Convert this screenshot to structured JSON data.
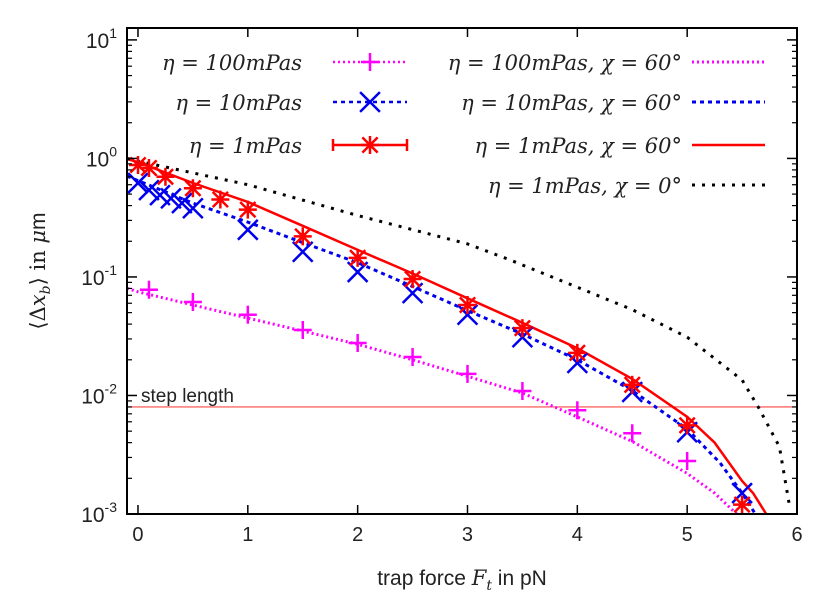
{
  "chart_data": {
    "type": "scatter",
    "xlabel": "trap force F_t in pN",
    "xlabel_parts": {
      "pre": "trap force ",
      "var": "F",
      "sub": "t",
      "post": " in pN"
    },
    "ylabel": "⟨Δx_b⟩ in μm",
    "ylabel_parts": {
      "pre": "⟨Δ",
      "var": "x",
      "sub": "b",
      "post": "⟩ in ",
      "unit_var": "μ",
      "unit": "m"
    },
    "xlim": [
      -0.1,
      6
    ],
    "ylim": [
      0.001,
      12.6
    ],
    "yscale": "log",
    "grid": false,
    "legend_position": "top",
    "x_ticks": [
      0,
      1,
      2,
      3,
      4,
      5,
      6
    ],
    "x_tick_labels": [
      "0",
      "1",
      "2",
      "3",
      "4",
      "5",
      "6"
    ],
    "y_ticks": [
      0.001,
      0.01,
      0.1,
      1,
      10
    ],
    "y_tick_labels": [
      {
        "base": "10",
        "exp": "-3"
      },
      {
        "base": "10",
        "exp": "-2"
      },
      {
        "base": "10",
        "exp": "-1"
      },
      {
        "base": "10",
        "exp": "0"
      },
      {
        "base": "10",
        "exp": "1"
      }
    ],
    "points": [
      {
        "name": "η = 100mPas",
        "marker": "plus",
        "color": "#ff00ff",
        "x": [
          0.1,
          0.5,
          1,
          1.5,
          2,
          2.5,
          3,
          3.5,
          4,
          4.5,
          5
        ],
        "y": [
          0.078,
          0.0615,
          0.048,
          0.0357,
          0.0277,
          0.0211,
          0.0152,
          0.0109,
          0.0075,
          0.0048,
          0.0028
        ]
      },
      {
        "name": "η = 10mPas",
        "marker": "cross",
        "color": "#0000ee",
        "x": [
          0,
          0.1,
          0.2,
          0.3,
          0.4,
          0.5,
          1,
          1.5,
          2,
          2.5,
          3,
          3.5,
          4,
          4.5,
          5,
          5.5
        ],
        "y": [
          0.62,
          0.54,
          0.49,
          0.46,
          0.42,
          0.38,
          0.25,
          0.163,
          0.11,
          0.073,
          0.048,
          0.031,
          0.0188,
          0.0107,
          0.0049,
          0.0015
        ]
      },
      {
        "name": "η = 1mPas",
        "marker": "star",
        "color": "#ff0000",
        "x": [
          0,
          0.1,
          0.25,
          0.5,
          0.75,
          1,
          1.5,
          2,
          2.5,
          3,
          3.5,
          4,
          4.5,
          5,
          5.5
        ],
        "y": [
          0.88,
          0.83,
          0.7,
          0.56,
          0.45,
          0.37,
          0.22,
          0.145,
          0.096,
          0.058,
          0.037,
          0.0229,
          0.0123,
          0.0056,
          0.0012
        ]
      }
    ],
    "curves": [
      {
        "name": "η = 100mPas, χ = 60°",
        "style": "dotted",
        "color": "#ff00ff",
        "x": [
          -0.1,
          0,
          0.5,
          1,
          1.5,
          2,
          2.5,
          3,
          3.5,
          4,
          4.5,
          5,
          5.25,
          5.45
        ],
        "y": [
          0.08,
          0.075,
          0.058,
          0.045,
          0.035,
          0.027,
          0.02,
          0.0145,
          0.0105,
          0.0066,
          0.0041,
          0.0022,
          0.0015,
          0.001
        ]
      },
      {
        "name": "η = 10mPas, χ = 60°",
        "style": "dashed",
        "color": "#0000ee",
        "x": [
          -0.1,
          0,
          0.5,
          1,
          1.5,
          2,
          2.5,
          3,
          3.5,
          4,
          4.5,
          5,
          5.3,
          5.5,
          5.62
        ],
        "y": [
          0.71,
          0.65,
          0.42,
          0.29,
          0.195,
          0.132,
          0.083,
          0.052,
          0.033,
          0.02,
          0.011,
          0.0052,
          0.0027,
          0.0015,
          0.001
        ]
      },
      {
        "name": "η = 1mPas, χ = 60°",
        "style": "solid",
        "color": "#ff0000",
        "x": [
          -0.1,
          0,
          0.5,
          1,
          1.5,
          2,
          2.5,
          3,
          3.5,
          4,
          4.5,
          5,
          5.25,
          5.5,
          5.6,
          5.72
        ],
        "y": [
          0.99,
          0.93,
          0.62,
          0.43,
          0.27,
          0.169,
          0.107,
          0.066,
          0.041,
          0.025,
          0.0138,
          0.0066,
          0.004,
          0.0019,
          0.0015,
          0.001
        ]
      },
      {
        "name": "η = 1mPas, χ = 0°",
        "style": "dotted-black",
        "color": "#000000",
        "x": [
          -0.1,
          0,
          1,
          2,
          3,
          3.38,
          4,
          4.5,
          5,
          5.5,
          5.65,
          5.84,
          5.93
        ],
        "y": [
          1.0,
          0.95,
          0.6,
          0.33,
          0.19,
          0.14,
          0.082,
          0.053,
          0.031,
          0.0135,
          0.0079,
          0.0037,
          0.0012
        ]
      }
    ],
    "hline": {
      "label": "step length",
      "y": 0.008,
      "color": "#ff4444"
    },
    "legend": [
      {
        "col": "left",
        "text": "η = 100mPas",
        "ref": "points.0",
        "line": "dotted"
      },
      {
        "col": "left",
        "text": "η = 10mPas",
        "ref": "points.1",
        "line": "dashed"
      },
      {
        "col": "left",
        "text": "η = 1mPas",
        "ref": "points.2",
        "line": "errorbar"
      },
      {
        "col": "right",
        "text": "η = 100mPas, χ = 60°",
        "ref": "curves.0"
      },
      {
        "col": "right",
        "text": "η = 10mPas, χ = 60°",
        "ref": "curves.1"
      },
      {
        "col": "right",
        "text": "η = 1mPas, χ = 60°",
        "ref": "curves.2"
      },
      {
        "col": "right",
        "text": "η = 1mPas, χ = 0°",
        "ref": "curves.3"
      }
    ]
  }
}
